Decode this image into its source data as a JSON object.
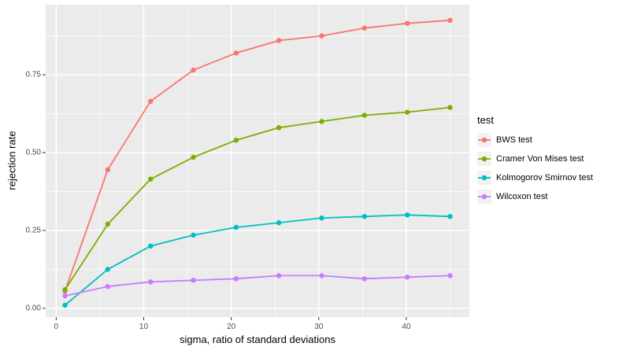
{
  "chart_data": {
    "type": "line",
    "title": "",
    "xlabel": "sigma, ratio of standard deviations",
    "ylabel": "rejection rate",
    "x": [
      1,
      5.89,
      10.78,
      15.67,
      20.56,
      25.44,
      30.33,
      35.22,
      40.11,
      45
    ],
    "series": [
      {
        "name": "BWS test",
        "color": "#F8766D",
        "values": [
          0.055,
          0.445,
          0.665,
          0.765,
          0.82,
          0.86,
          0.875,
          0.9,
          0.915,
          0.925
        ]
      },
      {
        "name": "Cramer Von Mises test",
        "color": "#7CAE00",
        "values": [
          0.06,
          0.27,
          0.415,
          0.485,
          0.54,
          0.58,
          0.6,
          0.62,
          0.63,
          0.645
        ]
      },
      {
        "name": "Kolmogorov Smirnov test",
        "color": "#00BFC4",
        "values": [
          0.01,
          0.125,
          0.2,
          0.235,
          0.26,
          0.275,
          0.29,
          0.295,
          0.3,
          0.295
        ]
      },
      {
        "name": "Wilcoxon test",
        "color": "#C77CFF",
        "values": [
          0.04,
          0.07,
          0.085,
          0.09,
          0.095,
          0.105,
          0.105,
          0.095,
          0.1,
          0.105
        ]
      }
    ],
    "xlim": [
      -1.2,
      47.2
    ],
    "ylim": [
      -0.028,
      0.975
    ],
    "x_ticks": [
      0,
      10,
      20,
      30,
      40
    ],
    "x_tick_labels": [
      "0",
      "10",
      "20",
      "30",
      "40"
    ],
    "x_minor_ticks": [
      5,
      15,
      25,
      35,
      45
    ],
    "y_ticks": [
      0,
      0.25,
      0.5,
      0.75
    ],
    "y_tick_labels": [
      "0.00",
      "0.25",
      "0.50",
      "0.75"
    ],
    "y_minor_ticks": [
      0.125,
      0.375,
      0.625,
      0.875
    ],
    "grid": true,
    "legend_position": "right"
  },
  "legend": {
    "title": "test"
  },
  "colors": {
    "panel_bg": "#EBEBEB",
    "grid": "#FFFFFF",
    "tick_mark": "#333333",
    "tick_text": "#4D4D4D",
    "legend_key_bg": "#F2F2F2"
  }
}
